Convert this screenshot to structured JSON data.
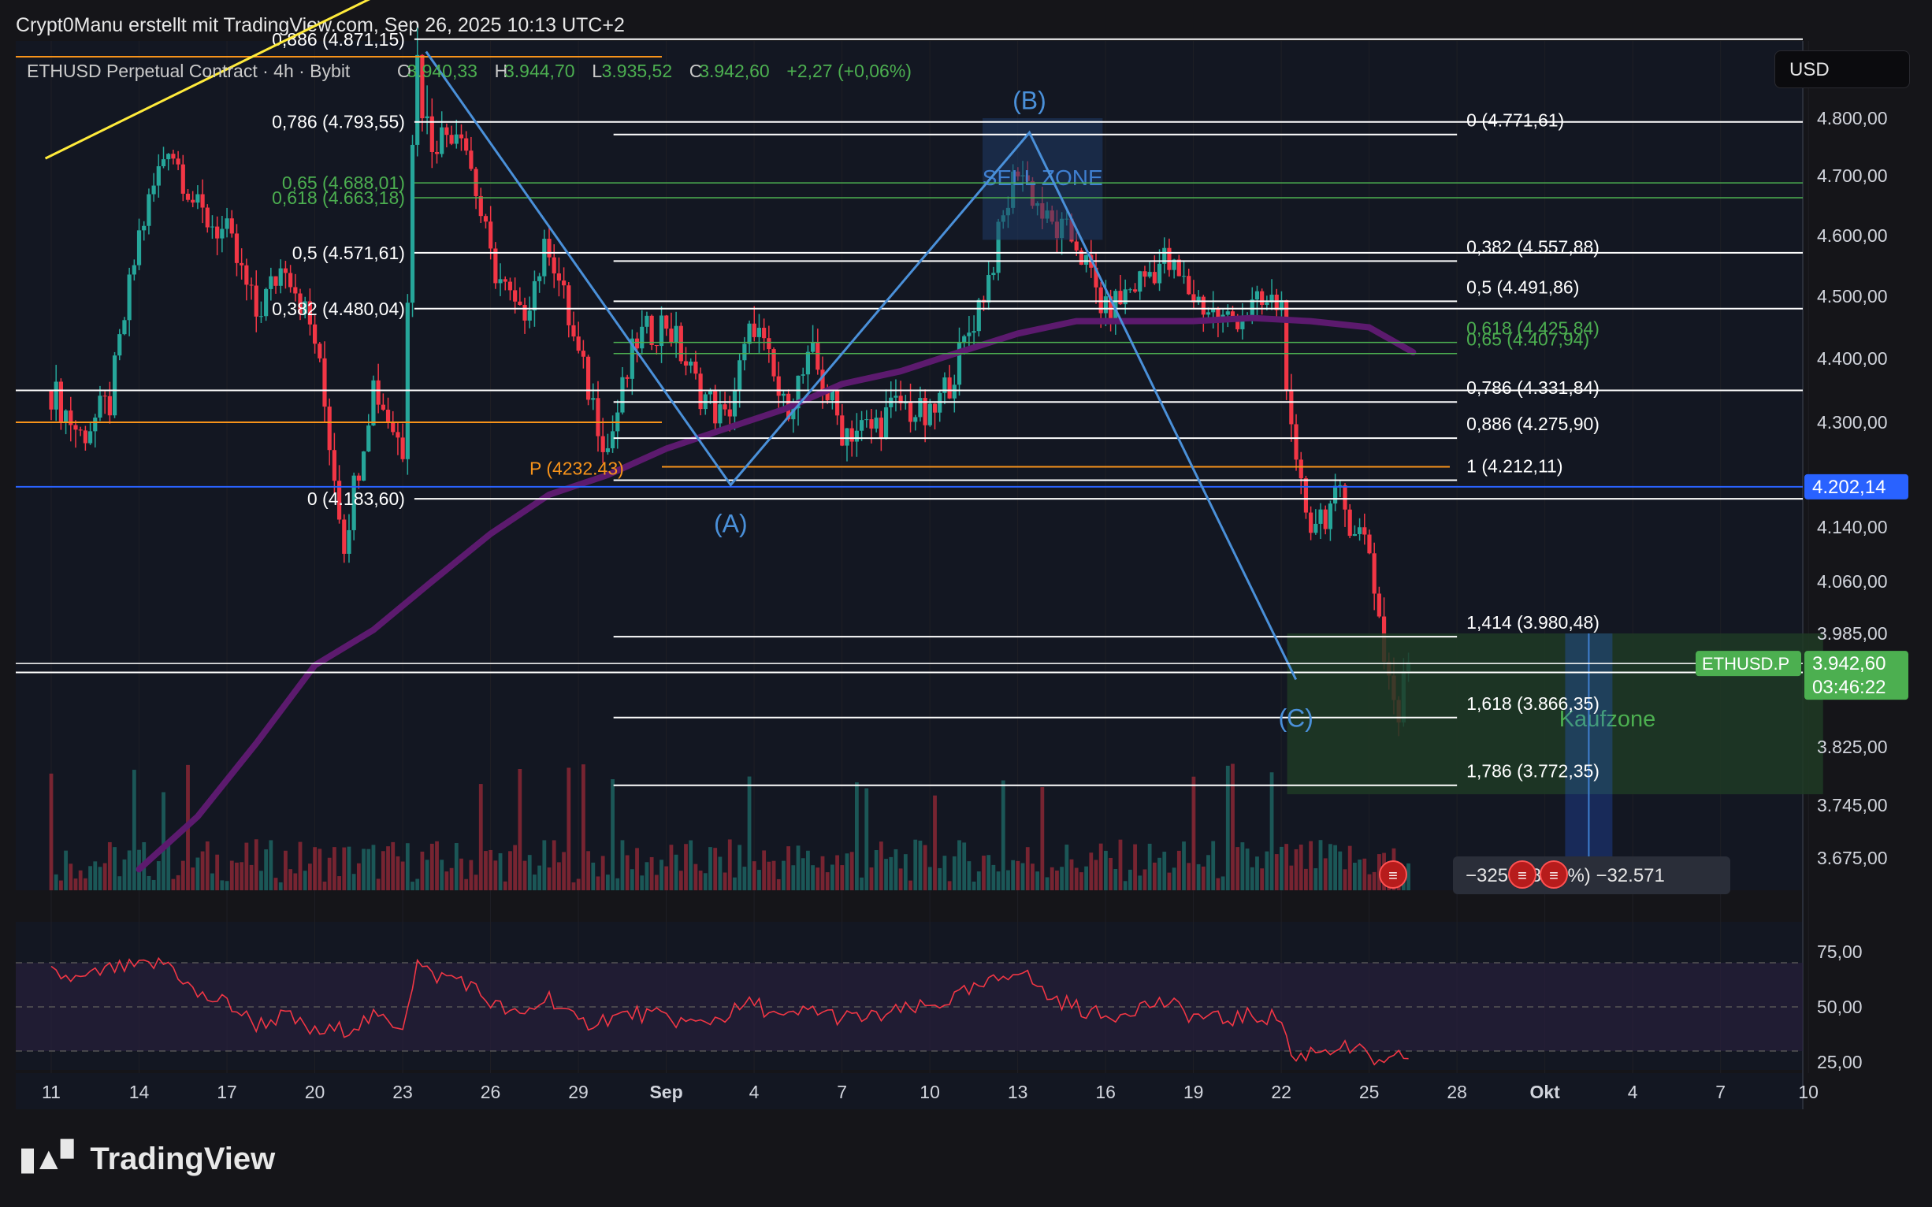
{
  "header": {
    "text": "Crypt0Manu erstellt mit TradingView.com, Sep 26, 2025 10:13 UTC+2"
  },
  "legend": {
    "symbol": "ETHUSD Perpetual Contract · 4h · Bybit",
    "o_label": "O",
    "o": "3.940,33",
    "h_label": "H",
    "h": "3.944,70",
    "l_label": "L",
    "l": "3.935,52",
    "c_label": "C",
    "c": "3.942,60",
    "change": "+2,27 (+0,06%)"
  },
  "currency_button": "USD",
  "footer": {
    "brand": "TradingView"
  },
  "colors": {
    "bg": "#151519",
    "grid": "#1f1f25",
    "bull": "#26a69a",
    "bear": "#f23645",
    "ma": "#5c1a6e",
    "fib": "#ffffff",
    "fib_green": "#4caf50",
    "blue": "#2962ff",
    "orange": "#f7931a",
    "rsi": "#f23645",
    "zone": "#1e3a24"
  },
  "chart_data": {
    "type": "candlestick",
    "symbol": "ETHUSD.P",
    "price_axis": {
      "ticks": [
        {
          "v": 4800,
          "t": "4.800,00"
        },
        {
          "v": 4700,
          "t": "4.700,00"
        },
        {
          "v": 4600,
          "t": "4.600,00"
        },
        {
          "v": 4500,
          "t": "4.500,00"
        },
        {
          "v": 4400,
          "t": "4.400,00"
        },
        {
          "v": 4300,
          "t": "4.300,00"
        },
        {
          "v": 4140,
          "t": "4.140,00"
        },
        {
          "v": 4060,
          "t": "4.060,00"
        },
        {
          "v": 3985,
          "t": "3.985,00"
        },
        {
          "v": 3825,
          "t": "3.825,00"
        },
        {
          "v": 3745,
          "t": "3.745,00"
        },
        {
          "v": 3675,
          "t": "3.675,00"
        }
      ]
    },
    "time_axis": {
      "ticks": [
        {
          "v": 0,
          "t": "11"
        },
        {
          "v": 3,
          "t": "14"
        },
        {
          "v": 6,
          "t": "17"
        },
        {
          "v": 9,
          "t": "20"
        },
        {
          "v": 12,
          "t": "23"
        },
        {
          "v": 15,
          "t": "26"
        },
        {
          "v": 18,
          "t": "29"
        },
        {
          "v": 21,
          "t": "Sep",
          "bold": true
        },
        {
          "v": 24,
          "t": "4"
        },
        {
          "v": 27,
          "t": "7"
        },
        {
          "v": 30,
          "t": "10"
        },
        {
          "v": 33,
          "t": "13"
        },
        {
          "v": 36,
          "t": "16"
        },
        {
          "v": 39,
          "t": "19"
        },
        {
          "v": 42,
          "t": "22"
        },
        {
          "v": 45,
          "t": "25"
        },
        {
          "v": 48,
          "t": "28"
        },
        {
          "v": 51,
          "t": "Okt",
          "bold": true
        },
        {
          "v": 54,
          "t": "4"
        },
        {
          "v": 57,
          "t": "7"
        },
        {
          "v": 60,
          "t": "10"
        }
      ]
    },
    "price_path": [
      [
        0,
        4350
      ],
      [
        1,
        4280
      ],
      [
        2,
        4330
      ],
      [
        3,
        4600
      ],
      [
        4,
        4760
      ],
      [
        5,
        4640
      ],
      [
        6,
        4600
      ],
      [
        7,
        4470
      ],
      [
        8,
        4560
      ],
      [
        9,
        4430
      ],
      [
        10,
        4120
      ],
      [
        11,
        4360
      ],
      [
        12,
        4260
      ],
      [
        12.4,
        4870
      ],
      [
        13,
        4760
      ],
      [
        14,
        4790
      ],
      [
        15,
        4560
      ],
      [
        16,
        4460
      ],
      [
        17,
        4590
      ],
      [
        18,
        4400
      ],
      [
        19,
        4260
      ],
      [
        20,
        4430
      ],
      [
        21,
        4460
      ],
      [
        22,
        4360
      ],
      [
        23,
        4300
      ],
      [
        24,
        4460
      ],
      [
        25,
        4320
      ],
      [
        26,
        4400
      ],
      [
        27,
        4290
      ],
      [
        28,
        4290
      ],
      [
        29,
        4330
      ],
      [
        30,
        4300
      ],
      [
        31,
        4400
      ],
      [
        32,
        4530
      ],
      [
        33,
        4720
      ],
      [
        34,
        4620
      ],
      [
        35,
        4590
      ],
      [
        36,
        4470
      ],
      [
        37,
        4520
      ],
      [
        38,
        4560
      ],
      [
        39,
        4500
      ],
      [
        40,
        4460
      ],
      [
        41,
        4480
      ],
      [
        42,
        4490
      ],
      [
        42.4,
        4230
      ],
      [
        43,
        4150
      ],
      [
        44,
        4180
      ],
      [
        45,
        4110
      ],
      [
        45.5,
        3960
      ],
      [
        46,
        3860
      ],
      [
        46.3,
        3950
      ],
      [
        46.5,
        3942.6
      ]
    ],
    "ma_path": [
      [
        3,
        3660
      ],
      [
        5,
        3730
      ],
      [
        7,
        3830
      ],
      [
        9,
        3940
      ],
      [
        11,
        3990
      ],
      [
        13,
        4060
      ],
      [
        15,
        4130
      ],
      [
        17,
        4190
      ],
      [
        19,
        4220
      ],
      [
        21,
        4260
      ],
      [
        23,
        4290
      ],
      [
        25,
        4320
      ],
      [
        27,
        4360
      ],
      [
        29,
        4380
      ],
      [
        31,
        4410
      ],
      [
        33,
        4440
      ],
      [
        35,
        4460
      ],
      [
        37,
        4460
      ],
      [
        39,
        4460
      ],
      [
        41,
        4465
      ],
      [
        43,
        4460
      ],
      [
        45,
        4450
      ],
      [
        46.5,
        4410
      ]
    ],
    "fib_left": {
      "x_start": 12.4,
      "x_end": 60.5,
      "levels": [
        {
          "v": 4871.15,
          "label": "0,886 (4.871,15)",
          "color": "fib"
        },
        {
          "v": 4793.55,
          "label": "0,786 (4.793,55)",
          "color": "fib"
        },
        {
          "v": 4688.01,
          "label": "0,65 (4.688,01)",
          "color": "fib_green"
        },
        {
          "v": 4663.18,
          "label": "0,618 (4.663,18)",
          "color": "fib_green"
        },
        {
          "v": 4571.61,
          "label": "0,5 (4.571,61)",
          "color": "fib"
        },
        {
          "v": 4480.04,
          "label": "0,382 (4.480,04)",
          "color": "fib"
        },
        {
          "v": 4183.6,
          "label": "0 (4.183,60)",
          "color": "fib"
        }
      ]
    },
    "fib_right": {
      "x_start": 19.2,
      "x_end": 48.0,
      "levels": [
        {
          "v": 4771.61,
          "label": "0 (4.771,61)",
          "color": "fib"
        },
        {
          "v": 4557.88,
          "label": "0,382 (4.557,88)",
          "color": "fib"
        },
        {
          "v": 4491.86,
          "label": "0,5 (4.491,86)",
          "color": "fib"
        },
        {
          "v": 4425.84,
          "label": "0,618 (4.425,84)",
          "color": "fib_green"
        },
        {
          "v": 4407.94,
          "label": "0,65 (4.407,94)",
          "color": "fib_green"
        },
        {
          "v": 4331.84,
          "label": "0,786 (4.331,84)",
          "color": "fib"
        },
        {
          "v": 4275.9,
          "label": "0,886 (4.275,90)",
          "color": "fib"
        },
        {
          "v": 4212.11,
          "label": "1 (4.212,11)",
          "color": "fib"
        },
        {
          "v": 3980.48,
          "label": "1,414 (3.980,48)",
          "color": "fib"
        },
        {
          "v": 3866.35,
          "label": "1,618 (3.866,35)",
          "color": "fib"
        },
        {
          "v": 3772.35,
          "label": "1,786 (3.772,35)",
          "color": "fib"
        }
      ]
    },
    "pivot": {
      "v": 4232.43,
      "label": "P (4232.43)"
    },
    "blue_line": {
      "v": 4202.14,
      "label": "4.202,14"
    },
    "current_price": {
      "v": 3942.6,
      "label": "3.942,60",
      "countdown": "03:46:22",
      "tag": "ETHUSD.P"
    },
    "waves": [
      {
        "label": "(A)",
        "x": 23.2,
        "v": 4205
      },
      {
        "label": "(B)",
        "x": 33.4,
        "v": 4775
      },
      {
        "label": "(C)",
        "x": 42.5,
        "v": 3920
      }
    ],
    "wave_origin": {
      "x": 12.8,
      "v": 4860
    },
    "sell_zone": {
      "label": "SELL ZONE",
      "x0": 31.8,
      "x1": 35.9,
      "v0": 4593,
      "v1": 4800
    },
    "buy_zone": {
      "label": "Kaufzone",
      "x0": 42.2,
      "x1": 60.5,
      "v0": 3760,
      "v1": 3985
    },
    "projection": {
      "x": 52.5,
      "v0": 3985,
      "v1": 3675
    },
    "trendline": {
      "x0": -0.2,
      "v0": 4730,
      "x1": 13.0,
      "v1": 4935
    },
    "orange_hline": {
      "v": 4300
    },
    "white_hlines": [
      4350,
      3930
    ],
    "volume_badge": "−325 (−8,20%) −32.571",
    "rsi": {
      "ticks": [
        {
          "v": 75,
          "t": "75,00"
        },
        {
          "v": 50,
          "t": "50,00"
        },
        {
          "v": 25,
          "t": "25,00"
        }
      ],
      "path": [
        [
          0,
          65
        ],
        [
          1,
          62
        ],
        [
          2,
          67
        ],
        [
          3,
          68
        ],
        [
          4,
          70
        ],
        [
          5,
          55
        ],
        [
          6,
          52
        ],
        [
          7,
          42
        ],
        [
          8,
          46
        ],
        [
          9,
          38
        ],
        [
          10,
          40
        ],
        [
          11,
          45
        ],
        [
          12,
          42
        ],
        [
          12.5,
          70
        ],
        [
          13,
          64
        ],
        [
          14,
          63
        ],
        [
          15,
          52
        ],
        [
          16,
          45
        ],
        [
          17,
          55
        ],
        [
          18,
          42
        ],
        [
          19,
          45
        ],
        [
          20,
          47
        ],
        [
          21,
          45
        ],
        [
          22,
          42
        ],
        [
          23,
          46
        ],
        [
          24,
          52
        ],
        [
          25,
          44
        ],
        [
          26,
          49
        ],
        [
          27,
          45
        ],
        [
          28,
          45
        ],
        [
          29,
          48
        ],
        [
          30,
          50
        ],
        [
          31,
          55
        ],
        [
          32,
          60
        ],
        [
          33,
          68
        ],
        [
          34,
          55
        ],
        [
          35,
          50
        ],
        [
          36,
          45
        ],
        [
          37,
          50
        ],
        [
          38,
          52
        ],
        [
          39,
          46
        ],
        [
          40,
          44
        ],
        [
          41,
          46
        ],
        [
          42,
          45
        ],
        [
          42.4,
          25
        ],
        [
          43,
          30
        ],
        [
          44,
          32
        ],
        [
          45,
          28
        ],
        [
          45.5,
          22
        ],
        [
          46,
          27
        ],
        [
          46.5,
          29
        ]
      ]
    }
  }
}
